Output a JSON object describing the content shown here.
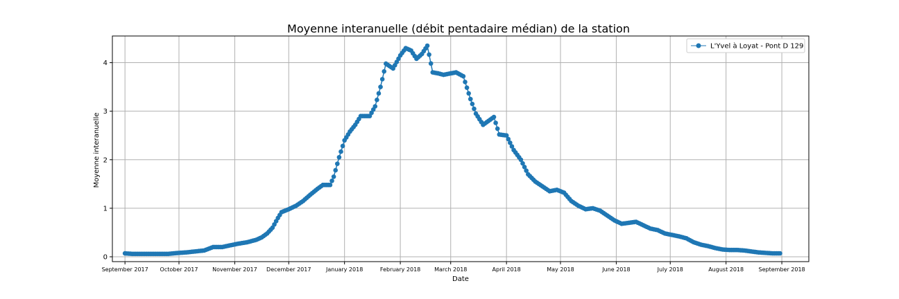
{
  "chart_data": {
    "type": "line",
    "title": "Moyenne interanuelle  (débit pentadaire médian) de la station",
    "xlabel": "Date",
    "ylabel": "Moyenne interanuelle",
    "xlim": [
      "2017-08-25",
      "2018-09-16"
    ],
    "ylim": [
      -0.1,
      4.55
    ],
    "grid": true,
    "legend_position": "top-right",
    "x_ticks": [
      {
        "date": "2017-09-01",
        "label": "September 2017"
      },
      {
        "date": "2017-10-01",
        "label": "October 2017"
      },
      {
        "date": "2017-11-01",
        "label": "November 2017"
      },
      {
        "date": "2017-12-01",
        "label": "December 2017"
      },
      {
        "date": "2018-01-01",
        "label": "January 2018"
      },
      {
        "date": "2018-02-01",
        "label": "February 2018"
      },
      {
        "date": "2018-03-01",
        "label": "March 2018"
      },
      {
        "date": "2018-04-01",
        "label": "April 2018"
      },
      {
        "date": "2018-05-01",
        "label": "May 2018"
      },
      {
        "date": "2018-06-01",
        "label": "June 2018"
      },
      {
        "date": "2018-07-01",
        "label": "July 2018"
      },
      {
        "date": "2018-08-01",
        "label": "August 2018"
      },
      {
        "date": "2018-09-01",
        "label": "September 2018"
      }
    ],
    "y_ticks": [
      0,
      1,
      2,
      3,
      4
    ],
    "series": [
      {
        "name": "L'Yvel à Loyat - Pont D 129",
        "color": "#1f77b4",
        "marker": "circle",
        "points": [
          [
            "2017-09-01",
            0.07
          ],
          [
            "2017-09-05",
            0.06
          ],
          [
            "2017-09-10",
            0.06
          ],
          [
            "2017-09-15",
            0.06
          ],
          [
            "2017-09-20",
            0.06
          ],
          [
            "2017-09-25",
            0.06
          ],
          [
            "2017-10-01",
            0.08
          ],
          [
            "2017-10-05",
            0.09
          ],
          [
            "2017-10-10",
            0.11
          ],
          [
            "2017-10-15",
            0.13
          ],
          [
            "2017-10-20",
            0.2
          ],
          [
            "2017-10-25",
            0.2
          ],
          [
            "2017-10-30",
            0.24
          ],
          [
            "2017-11-03",
            0.27
          ],
          [
            "2017-11-08",
            0.3
          ],
          [
            "2017-11-13",
            0.35
          ],
          [
            "2017-11-16",
            0.4
          ],
          [
            "2017-11-19",
            0.48
          ],
          [
            "2017-11-22",
            0.6
          ],
          [
            "2017-11-25",
            0.8
          ],
          [
            "2017-11-27",
            0.92
          ],
          [
            "2017-12-01",
            0.98
          ],
          [
            "2017-12-05",
            1.05
          ],
          [
            "2017-12-09",
            1.15
          ],
          [
            "2017-12-13",
            1.28
          ],
          [
            "2017-12-17",
            1.4
          ],
          [
            "2017-12-20",
            1.48
          ],
          [
            "2017-12-24",
            1.48
          ],
          [
            "2017-12-26",
            1.65
          ],
          [
            "2017-12-29",
            2.05
          ],
          [
            "2018-01-01",
            2.4
          ],
          [
            "2018-01-04",
            2.58
          ],
          [
            "2018-01-07",
            2.72
          ],
          [
            "2018-01-10",
            2.9
          ],
          [
            "2018-01-12",
            2.9
          ],
          [
            "2018-01-15",
            2.9
          ],
          [
            "2018-01-18",
            3.1
          ],
          [
            "2018-01-21",
            3.5
          ],
          [
            "2018-01-24",
            3.98
          ],
          [
            "2018-01-28",
            3.88
          ],
          [
            "2018-02-01",
            4.15
          ],
          [
            "2018-02-04",
            4.3
          ],
          [
            "2018-02-07",
            4.25
          ],
          [
            "2018-02-10",
            4.08
          ],
          [
            "2018-02-13",
            4.18
          ],
          [
            "2018-02-16",
            4.35
          ],
          [
            "2018-02-19",
            3.8
          ],
          [
            "2018-02-22",
            3.78
          ],
          [
            "2018-02-25",
            3.75
          ],
          [
            "2018-03-01",
            3.78
          ],
          [
            "2018-03-04",
            3.8
          ],
          [
            "2018-03-08",
            3.72
          ],
          [
            "2018-03-12",
            3.25
          ],
          [
            "2018-03-15",
            2.95
          ],
          [
            "2018-03-19",
            2.72
          ],
          [
            "2018-03-22",
            2.8
          ],
          [
            "2018-03-25",
            2.88
          ],
          [
            "2018-03-28",
            2.52
          ],
          [
            "2018-04-01",
            2.5
          ],
          [
            "2018-04-05",
            2.2
          ],
          [
            "2018-04-09",
            2.0
          ],
          [
            "2018-04-13",
            1.7
          ],
          [
            "2018-04-17",
            1.55
          ],
          [
            "2018-04-21",
            1.45
          ],
          [
            "2018-04-25",
            1.35
          ],
          [
            "2018-04-29",
            1.38
          ],
          [
            "2018-05-03",
            1.32
          ],
          [
            "2018-05-07",
            1.15
          ],
          [
            "2018-05-11",
            1.05
          ],
          [
            "2018-05-15",
            0.98
          ],
          [
            "2018-05-19",
            1.0
          ],
          [
            "2018-05-23",
            0.95
          ],
          [
            "2018-05-27",
            0.85
          ],
          [
            "2018-05-31",
            0.75
          ],
          [
            "2018-06-04",
            0.68
          ],
          [
            "2018-06-08",
            0.7
          ],
          [
            "2018-06-12",
            0.72
          ],
          [
            "2018-06-16",
            0.65
          ],
          [
            "2018-06-20",
            0.58
          ],
          [
            "2018-06-24",
            0.55
          ],
          [
            "2018-06-28",
            0.48
          ],
          [
            "2018-07-02",
            0.45
          ],
          [
            "2018-07-06",
            0.42
          ],
          [
            "2018-07-10",
            0.38
          ],
          [
            "2018-07-14",
            0.3
          ],
          [
            "2018-07-18",
            0.25
          ],
          [
            "2018-07-22",
            0.22
          ],
          [
            "2018-07-26",
            0.18
          ],
          [
            "2018-07-30",
            0.15
          ],
          [
            "2018-08-03",
            0.14
          ],
          [
            "2018-08-07",
            0.14
          ],
          [
            "2018-08-11",
            0.13
          ],
          [
            "2018-08-15",
            0.11
          ],
          [
            "2018-08-19",
            0.09
          ],
          [
            "2018-08-23",
            0.08
          ],
          [
            "2018-08-27",
            0.07
          ],
          [
            "2018-08-31",
            0.07
          ]
        ]
      }
    ]
  }
}
